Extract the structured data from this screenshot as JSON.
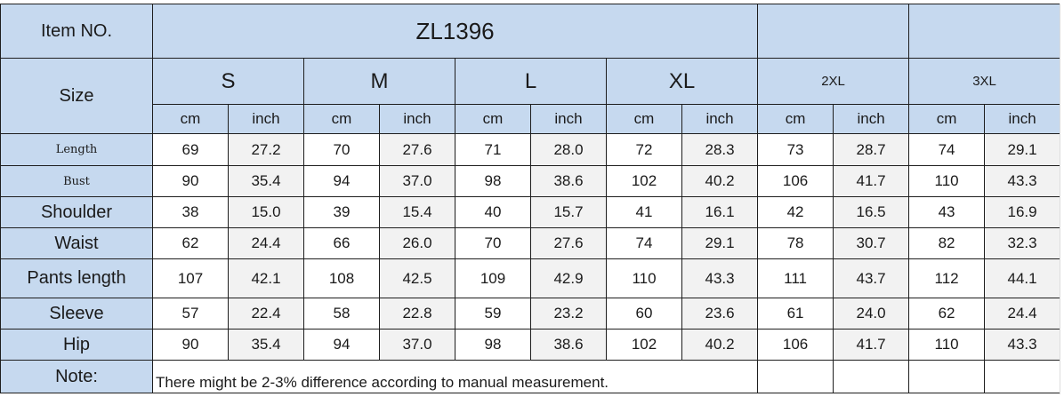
{
  "item_label": "Item NO.",
  "item_no": "ZL1396",
  "size_label": "Size",
  "sizes": [
    "S",
    "M",
    "L",
    "XL",
    "2XL",
    "3XL"
  ],
  "units": [
    "cm",
    "inch"
  ],
  "rows": [
    {
      "label": "Length",
      "values": [
        "69",
        "27.2",
        "70",
        "27.6",
        "71",
        "28.0",
        "72",
        "28.3",
        "73",
        "28.7",
        "74",
        "29.1"
      ]
    },
    {
      "label": "Bust",
      "values": [
        "90",
        "35.4",
        "94",
        "37.0",
        "98",
        "38.6",
        "102",
        "40.2",
        "106",
        "41.7",
        "110",
        "43.3"
      ]
    },
    {
      "label": "Shoulder",
      "values": [
        "38",
        "15.0",
        "39",
        "15.4",
        "40",
        "15.7",
        "41",
        "16.1",
        "42",
        "16.5",
        "43",
        "16.9"
      ]
    },
    {
      "label": "Waist",
      "values": [
        "62",
        "24.4",
        "66",
        "26.0",
        "70",
        "27.6",
        "74",
        "29.1",
        "78",
        "30.7",
        "82",
        "32.3"
      ]
    },
    {
      "label": "Pants length",
      "values": [
        "107",
        "42.1",
        "108",
        "42.5",
        "109",
        "42.9",
        "110",
        "43.3",
        "111",
        "43.7",
        "112",
        "44.1"
      ]
    },
    {
      "label": "Sleeve",
      "values": [
        "57",
        "22.4",
        "58",
        "22.8",
        "59",
        "23.2",
        "60",
        "23.6",
        "61",
        "24.0",
        "62",
        "24.4"
      ]
    },
    {
      "label": "Hip",
      "values": [
        "90",
        "35.4",
        "94",
        "37.0",
        "98",
        "38.6",
        "102",
        "40.2",
        "106",
        "41.7",
        "110",
        "43.3"
      ]
    }
  ],
  "note_label": "Note:",
  "note_text": "There might be 2-3% difference according to manual measurement.",
  "colors": {
    "header_bg": "#c6d9ef",
    "inch_bg": "#f2f2f2"
  }
}
